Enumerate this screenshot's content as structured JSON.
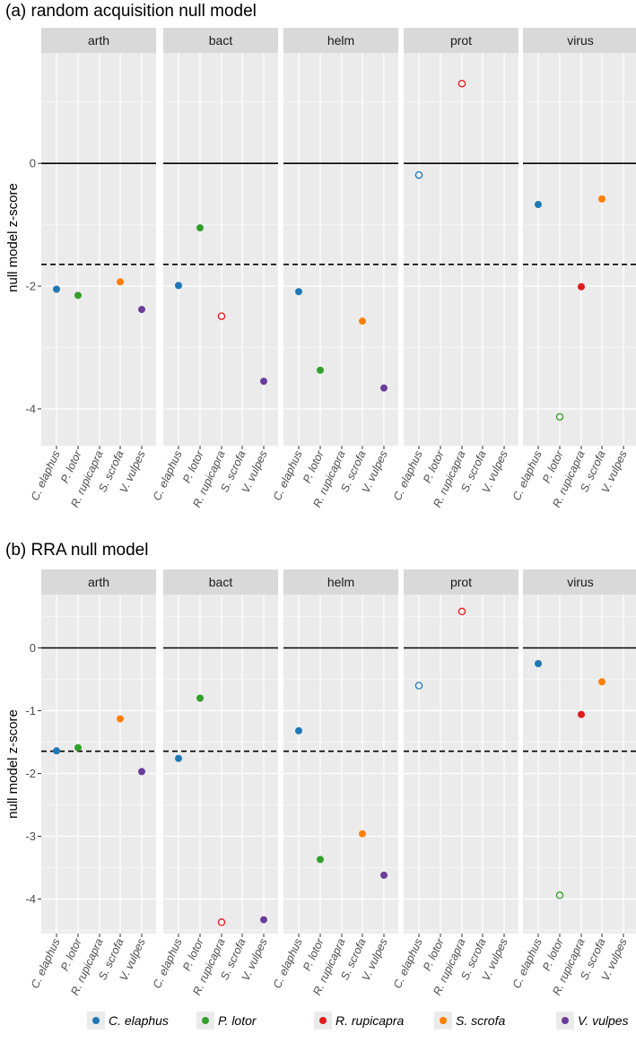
{
  "chart_data": [
    {
      "type": "scatter",
      "title": "(a) random acquisition null model",
      "ylabel": "null model z-score",
      "xlabel": "",
      "ylim": [
        -4.6,
        1.8
      ],
      "yticks": [
        0,
        -2,
        -4
      ],
      "reference_lines": [
        {
          "y": 0,
          "style": "solid"
        },
        {
          "y": -1.645,
          "style": "dashed"
        }
      ],
      "panels": [
        {
          "name": "arth",
          "points": [
            {
              "species": "C. elaphus",
              "value": -2.05,
              "filled": true
            },
            {
              "species": "P. lotor",
              "value": -2.15,
              "filled": true
            },
            {
              "species": "S. scrofa",
              "value": -1.93,
              "filled": true
            },
            {
              "species": "V. vulpes",
              "value": -2.38,
              "filled": true
            }
          ]
        },
        {
          "name": "bact",
          "points": [
            {
              "species": "C. elaphus",
              "value": -1.99,
              "filled": true
            },
            {
              "species": "P. lotor",
              "value": -1.05,
              "filled": true
            },
            {
              "species": "R. rupicapra",
              "value": -2.49,
              "filled": false
            },
            {
              "species": "V. vulpes",
              "value": -3.55,
              "filled": true
            }
          ]
        },
        {
          "name": "helm",
          "points": [
            {
              "species": "C. elaphus",
              "value": -2.09,
              "filled": true
            },
            {
              "species": "P. lotor",
              "value": -3.37,
              "filled": true
            },
            {
              "species": "S. scrofa",
              "value": -2.57,
              "filled": true
            },
            {
              "species": "V. vulpes",
              "value": -3.66,
              "filled": true
            }
          ]
        },
        {
          "name": "prot",
          "points": [
            {
              "species": "C. elaphus",
              "value": -0.19,
              "filled": false
            },
            {
              "species": "R. rupicapra",
              "value": 1.3,
              "filled": false
            }
          ]
        },
        {
          "name": "virus",
          "points": [
            {
              "species": "C. elaphus",
              "value": -0.67,
              "filled": true
            },
            {
              "species": "P. lotor",
              "value": -4.13,
              "filled": false
            },
            {
              "species": "R. rupicapra",
              "value": -2.01,
              "filled": true
            },
            {
              "species": "S. scrofa",
              "value": -0.58,
              "filled": true
            }
          ]
        }
      ]
    },
    {
      "type": "scatter",
      "title": "(b) RRA null model",
      "ylabel": "null model z-score",
      "xlabel": "",
      "ylim": [
        -4.55,
        0.85
      ],
      "yticks": [
        0,
        -1,
        -2,
        -3,
        -4
      ],
      "reference_lines": [
        {
          "y": 0,
          "style": "solid"
        },
        {
          "y": -1.645,
          "style": "dashed"
        }
      ],
      "panels": [
        {
          "name": "arth",
          "points": [
            {
              "species": "C. elaphus",
              "value": -1.64,
              "filled": true
            },
            {
              "species": "P. lotor",
              "value": -1.59,
              "filled": true
            },
            {
              "species": "S. scrofa",
              "value": -1.13,
              "filled": true
            },
            {
              "species": "V. vulpes",
              "value": -1.97,
              "filled": true
            }
          ]
        },
        {
          "name": "bact",
          "points": [
            {
              "species": "C. elaphus",
              "value": -1.76,
              "filled": true
            },
            {
              "species": "P. lotor",
              "value": -0.8,
              "filled": true
            },
            {
              "species": "R. rupicapra",
              "value": -4.37,
              "filled": false
            },
            {
              "species": "V. vulpes",
              "value": -4.33,
              "filled": true
            }
          ]
        },
        {
          "name": "helm",
          "points": [
            {
              "species": "C. elaphus",
              "value": -1.32,
              "filled": true
            },
            {
              "species": "P. lotor",
              "value": -3.37,
              "filled": true
            },
            {
              "species": "S. scrofa",
              "value": -2.96,
              "filled": true
            },
            {
              "species": "V. vulpes",
              "value": -3.62,
              "filled": true
            }
          ]
        },
        {
          "name": "prot",
          "points": [
            {
              "species": "C. elaphus",
              "value": -0.6,
              "filled": false
            },
            {
              "species": "R. rupicapra",
              "value": 0.58,
              "filled": false
            }
          ]
        },
        {
          "name": "virus",
          "points": [
            {
              "species": "C. elaphus",
              "value": -0.25,
              "filled": true
            },
            {
              "species": "P. lotor",
              "value": -3.94,
              "filled": false
            },
            {
              "species": "R. rupicapra",
              "value": -1.06,
              "filled": true
            },
            {
              "species": "S. scrofa",
              "value": -0.54,
              "filled": true
            }
          ]
        }
      ]
    }
  ],
  "species": [
    "C. elaphus",
    "P. lotor",
    "R. rupicapra",
    "S. scrofa",
    "V. vulpes"
  ],
  "colors": {
    "C. elaphus": "#1f78b4",
    "P. lotor": "#33a02c",
    "R. rupicapra": "#e31a1c",
    "S. scrofa": "#ff7f00",
    "V. vulpes": "#6a3d9a",
    "panel_background": "#ebebeb",
    "strip_background": "#d9d9d9",
    "grid": "#ffffff"
  },
  "legend": {
    "position": "bottom",
    "entries": [
      "C. elaphus",
      "P. lotor",
      "R. rupicapra",
      "S. scrofa",
      "V. vulpes"
    ]
  }
}
